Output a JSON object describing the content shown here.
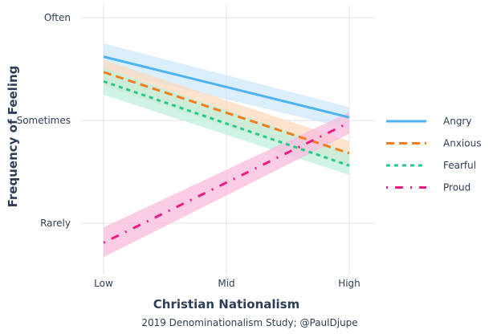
{
  "chart_data": {
    "type": "line",
    "title": "",
    "xlabel": "Christian Nationalism",
    "ylabel": "Frequency of Feeling",
    "caption": "2019 Denominationalism Study; @PaulDjupe",
    "x_categories": [
      "Low",
      "Mid",
      "High"
    ],
    "x_values": [
      0,
      1
    ],
    "y_ticks": [
      {
        "label": "Rarely",
        "value": 1
      },
      {
        "label": "Sometimes",
        "value": 2
      },
      {
        "label": "Often",
        "value": 3
      }
    ],
    "xlim": [
      -0.09,
      1.1
    ],
    "ylim": [
      0.5,
      3.12
    ],
    "grid": true,
    "legend_position": "right",
    "series": [
      {
        "name": "Angry",
        "color": "#4db3f0",
        "band_color": "#cfe8fb",
        "dash": "solid",
        "values": [
          2.62,
          2.03
        ],
        "lower": [
          2.49,
          1.92
        ],
        "upper": [
          2.75,
          2.13
        ]
      },
      {
        "name": "Anxious",
        "color": "#f47c1a",
        "band_color": "#fbd9bd",
        "dash": "dashed",
        "values": [
          2.47,
          1.68
        ],
        "lower": [
          2.34,
          1.55
        ],
        "upper": [
          2.59,
          1.8
        ]
      },
      {
        "name": "Fearful",
        "color": "#22cc88",
        "band_color": "#bff0dc",
        "dash": "dotted",
        "values": [
          2.38,
          1.56
        ],
        "lower": [
          2.25,
          1.47
        ],
        "upper": [
          2.51,
          1.69
        ]
      },
      {
        "name": "Proud",
        "color": "#ee1a84",
        "band_color": "#f9bcdc",
        "dash": "dotdash",
        "values": [
          0.81,
          1.98
        ],
        "lower": [
          0.67,
          1.87
        ],
        "upper": [
          0.96,
          2.08
        ]
      }
    ]
  }
}
